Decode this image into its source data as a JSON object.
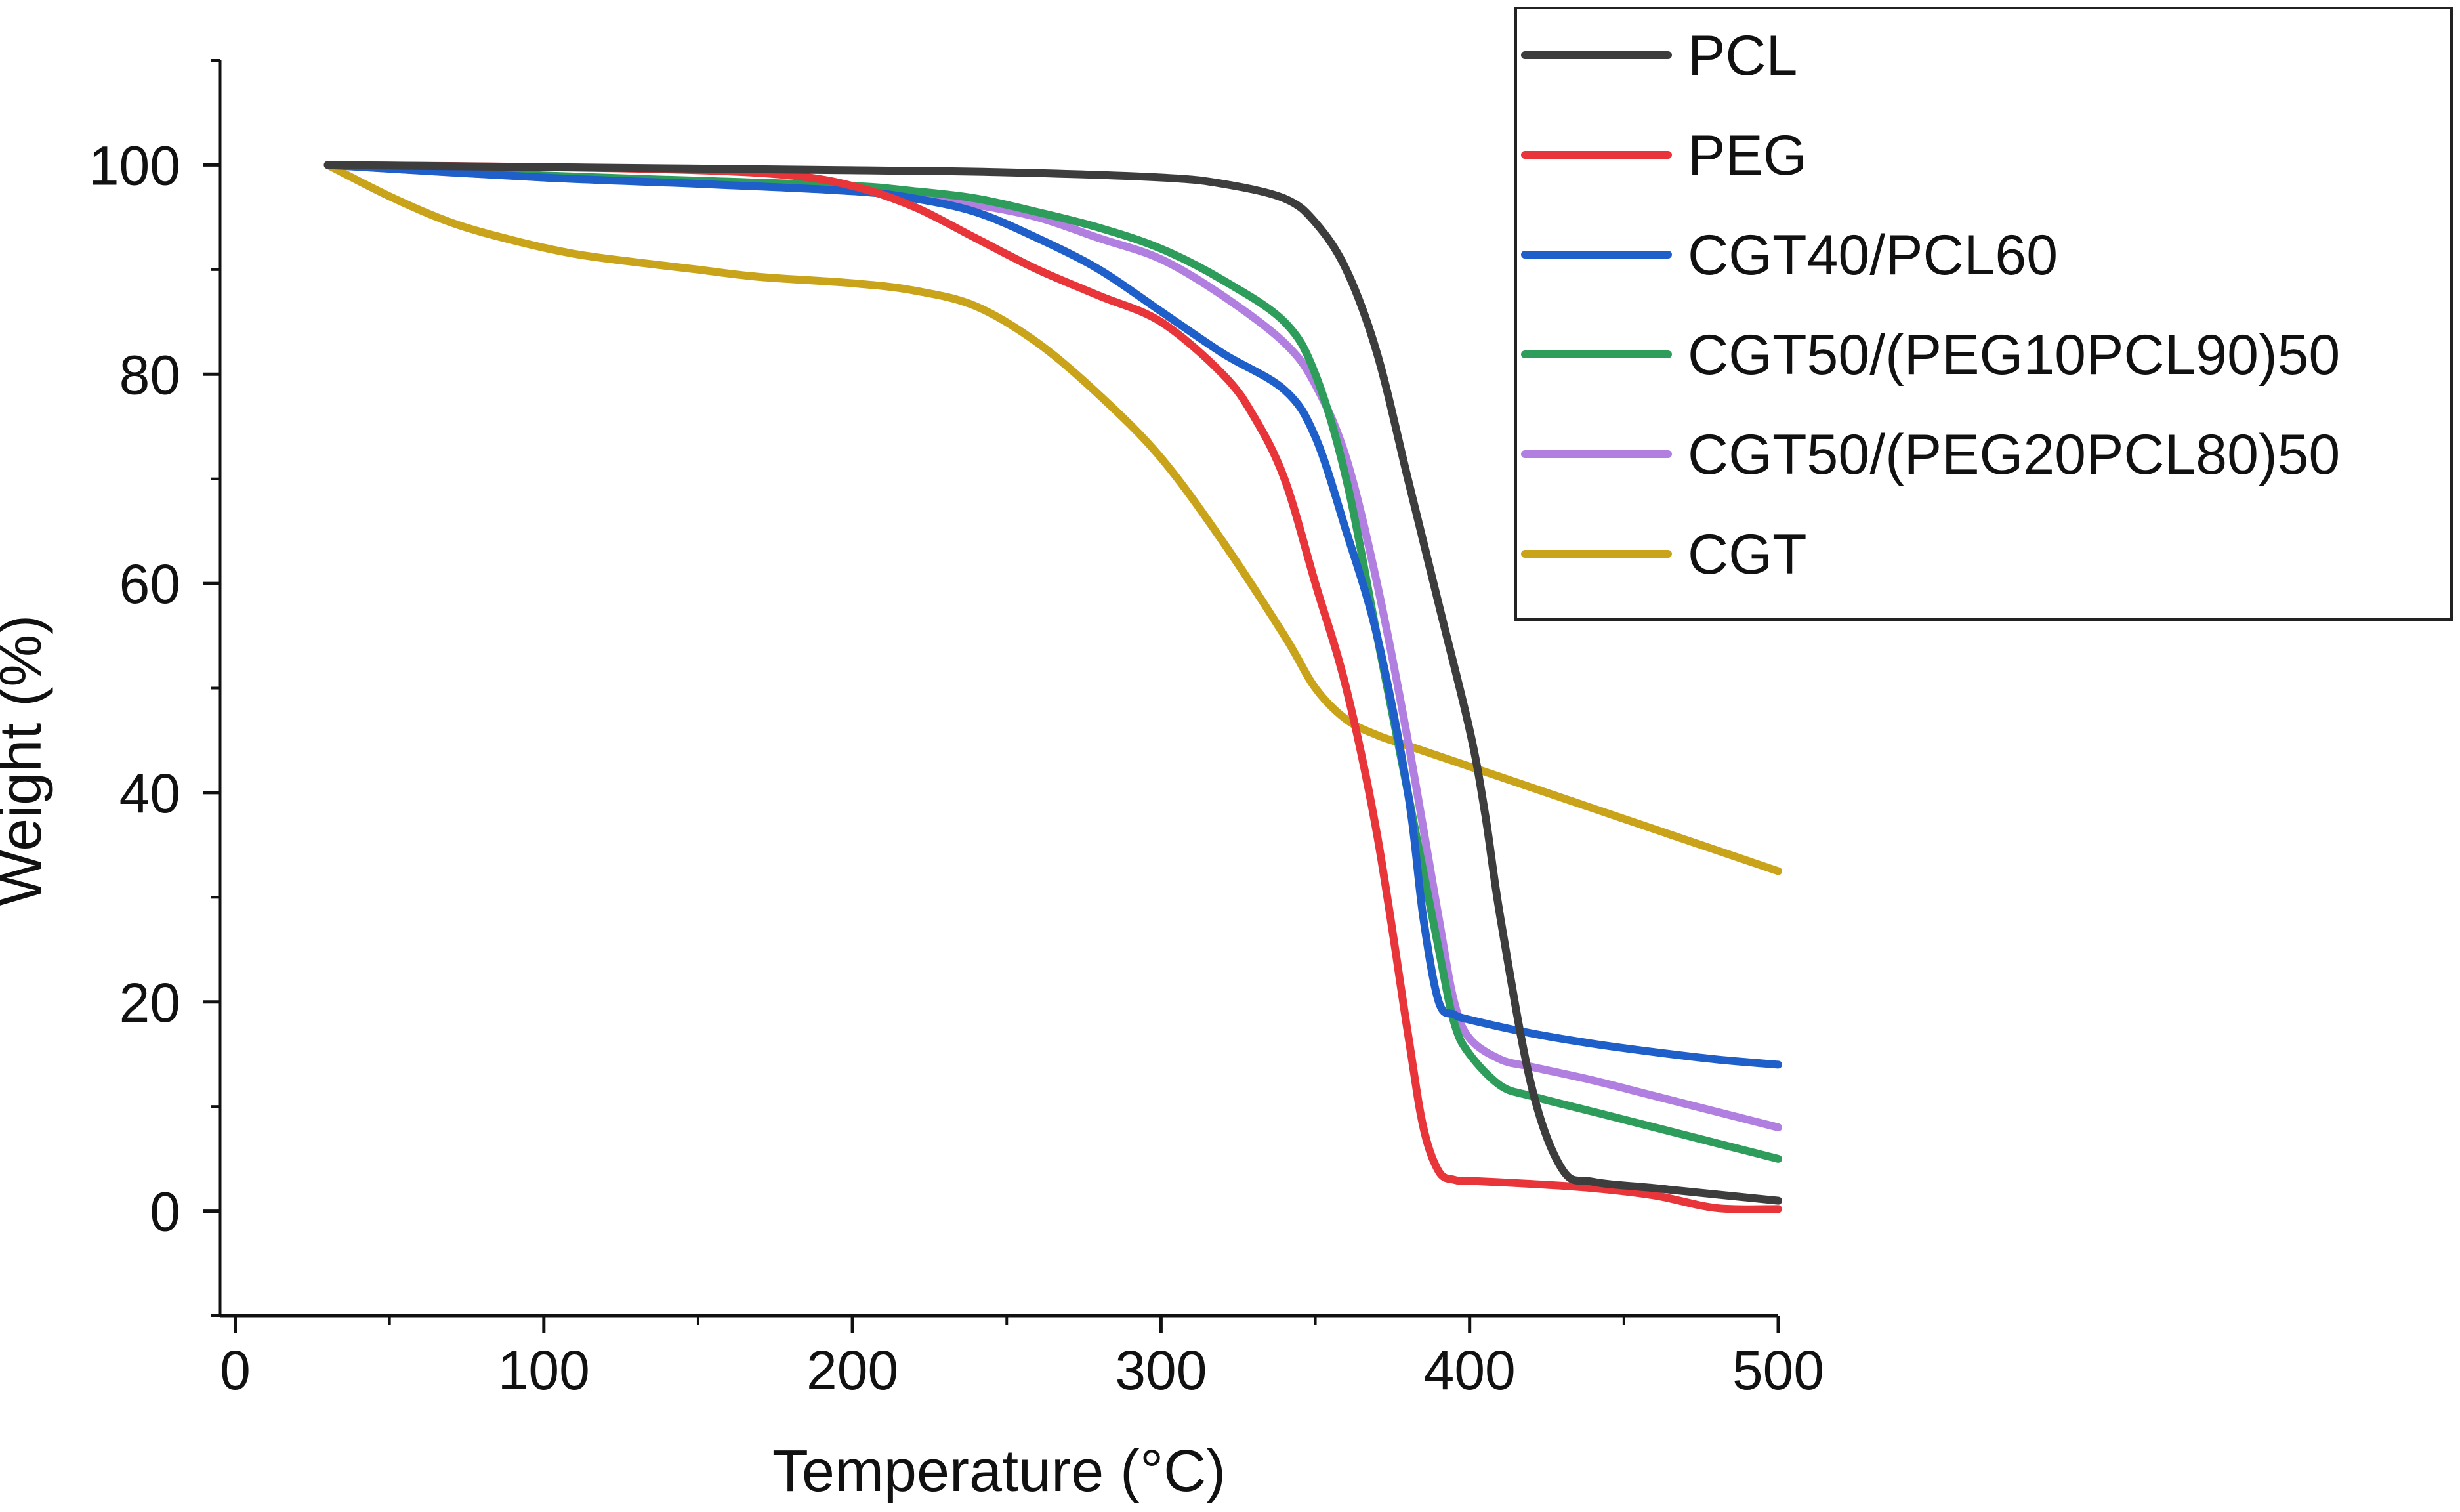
{
  "chart_data": {
    "type": "line",
    "title": "",
    "xlabel": "Temperature (°C)",
    "ylabel": "Weight (%)",
    "xlim": [
      -5,
      500
    ],
    "ylim": [
      -10,
      110
    ],
    "xticks": [
      0,
      100,
      200,
      300,
      400,
      500
    ],
    "xtick_labels": [
      "0",
      "100",
      "200",
      "300",
      "400",
      "500"
    ],
    "yticks": [
      0,
      20,
      40,
      60,
      80,
      100
    ],
    "ytick_labels": [
      "0",
      "20",
      "40",
      "60",
      "80",
      "100"
    ],
    "x_minor_step": 50,
    "y_minor_step": 10,
    "grid": false,
    "legend_position": "top-right",
    "series": [
      {
        "name": "PCL",
        "color": "#3d3d3d",
        "x": [
          30,
          100,
          200,
          250,
          300,
          320,
          340,
          350,
          360,
          370,
          380,
          390,
          400,
          405,
          410,
          420,
          430,
          440,
          460,
          480,
          500
        ],
        "y": [
          100,
          99.8,
          99.5,
          99.3,
          98.8,
          98.2,
          96.8,
          94.5,
          90,
          82,
          70,
          58,
          46,
          38,
          28,
          12,
          4,
          2.8,
          2.2,
          1.6,
          1
        ]
      },
      {
        "name": "PEG",
        "color": "#e8353a",
        "x": [
          30,
          100,
          150,
          180,
          200,
          220,
          240,
          260,
          280,
          300,
          320,
          330,
          340,
          350,
          360,
          370,
          380,
          385,
          390,
          395,
          400,
          420,
          440,
          460,
          480,
          500
        ],
        "y": [
          100,
          99.8,
          99.5,
          99,
          98,
          96,
          93,
          90,
          87.5,
          85,
          80,
          76,
          70,
          60,
          50,
          36,
          17,
          8,
          3.8,
          3,
          2.9,
          2.6,
          2.2,
          1.5,
          0.3,
          0.2
        ]
      },
      {
        "name": "CGT40/PCL60",
        "color": "#1f5fc9",
        "x": [
          30,
          100,
          150,
          200,
          220,
          240,
          260,
          280,
          300,
          320,
          340,
          350,
          360,
          370,
          380,
          385,
          390,
          395,
          400,
          420,
          440,
          460,
          480,
          500
        ],
        "y": [
          100,
          98.8,
          98.2,
          97.5,
          96.8,
          95.5,
          93,
          90,
          86,
          82,
          78.5,
          74,
          65,
          55,
          40,
          28,
          20,
          18.8,
          18.3,
          17,
          16,
          15.2,
          14.5,
          14
        ]
      },
      {
        "name": "CGT50/(PEG10PCL90)50",
        "color": "#2e9c5b",
        "x": [
          30,
          100,
          150,
          200,
          220,
          240,
          260,
          280,
          300,
          320,
          340,
          350,
          360,
          370,
          380,
          390,
          395,
          400,
          410,
          420,
          440,
          460,
          480,
          500
        ],
        "y": [
          100,
          99,
          98.5,
          98,
          97.5,
          96.8,
          95.5,
          94,
          92,
          89,
          85,
          80,
          70,
          55,
          40,
          25,
          18,
          15,
          12,
          11,
          9.5,
          8,
          6.5,
          5
        ]
      },
      {
        "name": "CGT50/(PEG20PCL80)50",
        "color": "#b07fe0",
        "x": [
          30,
          100,
          150,
          200,
          220,
          240,
          260,
          280,
          300,
          320,
          340,
          350,
          360,
          370,
          380,
          390,
          395,
          400,
          410,
          420,
          440,
          460,
          480,
          500
        ],
        "y": [
          100,
          98.8,
          98.3,
          97.5,
          97,
          96.2,
          95,
          93,
          91,
          87.5,
          83,
          79,
          72,
          60,
          45,
          28,
          20,
          16.5,
          14.5,
          13.8,
          12.5,
          11,
          9.5,
          8
        ]
      },
      {
        "name": "CGT",
        "color": "#c9a319",
        "x": [
          30,
          50,
          70,
          90,
          110,
          130,
          150,
          170,
          200,
          220,
          240,
          260,
          280,
          300,
          320,
          340,
          350,
          360,
          370,
          380,
          400,
          420,
          450,
          480,
          500
        ],
        "y": [
          100,
          97,
          94.5,
          92.8,
          91.5,
          90.7,
          90,
          89.3,
          88.7,
          88,
          86.5,
          83,
          78,
          72,
          64,
          55,
          50,
          47,
          45.5,
          44.5,
          42.5,
          40.5,
          37.5,
          34.5,
          32.5
        ]
      }
    ]
  }
}
